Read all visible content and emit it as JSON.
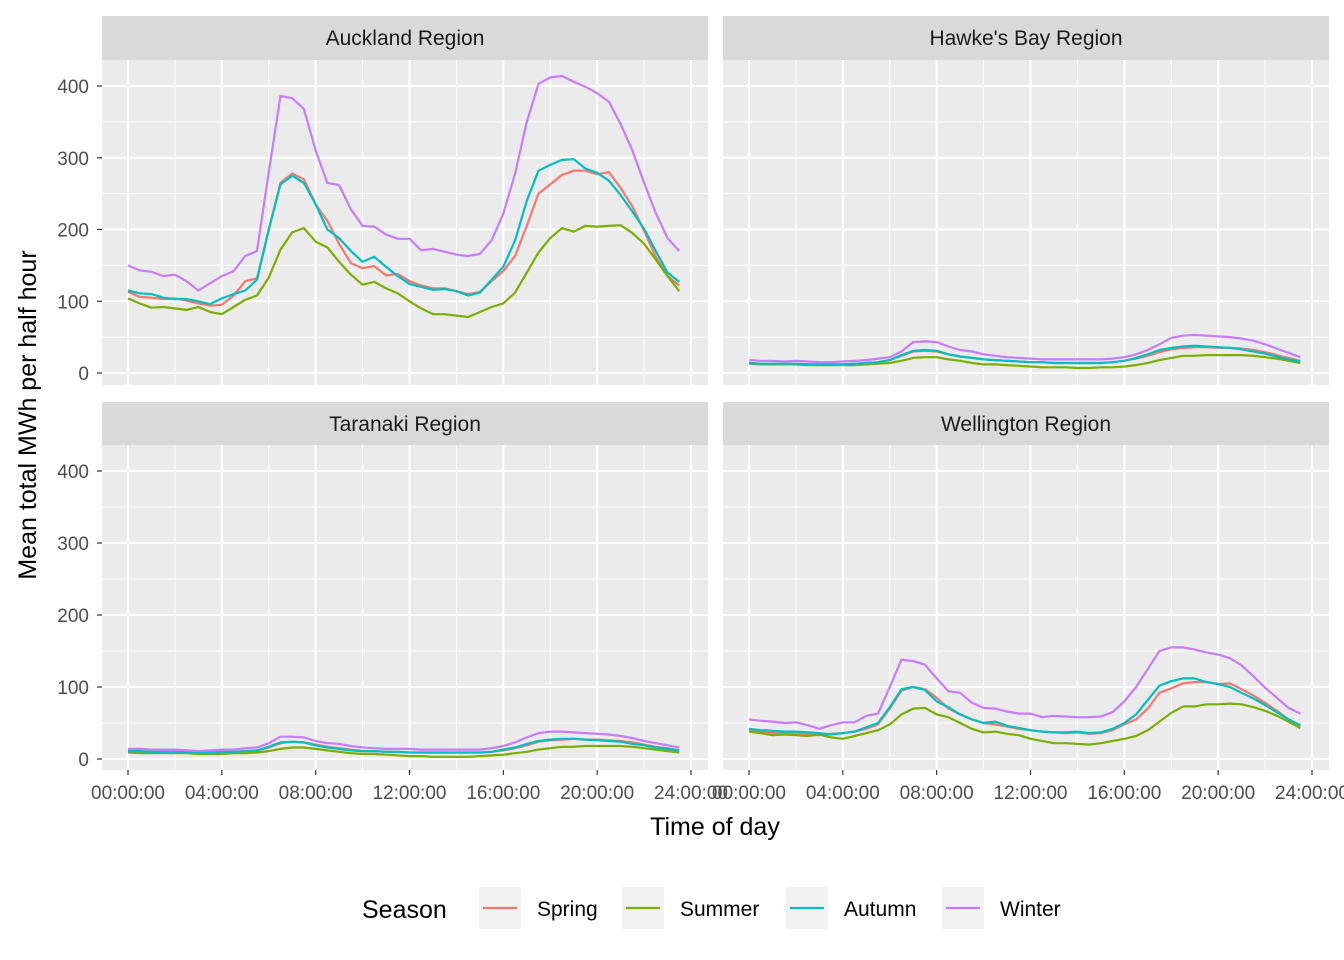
{
  "chart_data": {
    "type": "line",
    "xlabel": "Time of day",
    "ylabel": "Mean total MWh per half hour",
    "x_unit": "hours",
    "x_step_hours": 0.5,
    "x_ticks": [
      "00:00:00",
      "04:00:00",
      "08:00:00",
      "12:00:00",
      "16:00:00",
      "20:00:00",
      "24:00:00"
    ],
    "y_ticks": [
      "0",
      "100",
      "200",
      "300",
      "400"
    ],
    "ylim": [
      0,
      420
    ],
    "xlim": [
      0,
      24
    ],
    "grid": true,
    "legend": {
      "title": "Season",
      "placement": "bottom"
    },
    "series_meta": [
      {
        "name": "Spring",
        "color": "#F8766D"
      },
      {
        "name": "Summer",
        "color": "#7CAE00"
      },
      {
        "name": "Autumn",
        "color": "#00BFC4"
      },
      {
        "name": "Winter",
        "color": "#C77CFF"
      }
    ],
    "facets": [
      {
        "title": "Auckland Region",
        "series": [
          {
            "name": "Spring",
            "values": [
              113,
              106,
              105,
              103,
              104,
              101,
              97,
              94,
              95,
              108,
              128,
              132,
              200,
              265,
              278,
              270,
              235,
              212,
              180,
              153,
              146,
              149,
              136,
              138,
              128,
              122,
              118,
              118,
              114,
              110,
              113,
              128,
              142,
              163,
              205,
              250,
              263,
              276,
              282,
              282,
              277,
              280,
              258,
              232,
              198,
              162,
              135,
              122
            ]
          },
          {
            "name": "Summer",
            "values": [
              104,
              97,
              91,
              92,
              90,
              88,
              92,
              85,
              82,
              92,
              102,
              108,
              133,
              172,
              196,
              202,
              183,
              175,
              155,
              137,
              123,
              127,
              118,
              111,
              100,
              90,
              82,
              82,
              80,
              78,
              85,
              92,
              97,
              112,
              140,
              168,
              188,
              202,
              197,
              205,
              204,
              205,
              206,
              195,
              180,
              158,
              135,
              114
            ]
          },
          {
            "name": "Autumn",
            "values": [
              115,
              111,
              110,
              105,
              103,
              103,
              100,
              96,
              104,
              110,
              115,
              130,
              200,
              263,
              275,
              265,
              235,
              200,
              188,
              170,
              155,
              162,
              148,
              135,
              124,
              120,
              116,
              117,
              114,
              108,
              112,
              130,
              148,
              185,
              240,
              282,
              290,
              297,
              298,
              285,
              279,
              268,
              248,
              225,
              201,
              170,
              140,
              127
            ]
          },
          {
            "name": "Winter",
            "values": [
              150,
              143,
              141,
              135,
              137,
              128,
              115,
              125,
              135,
              142,
              163,
              170,
              280,
              386,
              383,
              368,
              310,
              265,
              262,
              228,
              205,
              204,
              193,
              187,
              187,
              171,
              173,
              169,
              165,
              163,
              166,
              185,
              222,
              278,
              350,
              403,
              412,
              414,
              406,
              399,
              390,
              378,
              347,
              310,
              265,
              223,
              188,
              170
            ]
          }
        ]
      },
      {
        "title": "Hawke's Bay Region",
        "series": [
          {
            "name": "Spring",
            "values": [
              14,
              13,
              13,
              13,
              13,
              12,
              12,
              12,
              12,
              13,
              14,
              15,
              18,
              24,
              30,
              31,
              30,
              26,
              23,
              21,
              19,
              18,
              17,
              16,
              15,
              15,
              14,
              14,
              14,
              14,
              14,
              15,
              17,
              20,
              24,
              29,
              33,
              35,
              36,
              36,
              35,
              35,
              34,
              32,
              29,
              25,
              21,
              17
            ]
          },
          {
            "name": "Summer",
            "values": [
              13,
              12,
              12,
              12,
              12,
              11,
              11,
              11,
              11,
              11,
              12,
              13,
              14,
              17,
              21,
              22,
              22,
              19,
              17,
              14,
              12,
              12,
              11,
              10,
              9,
              8,
              8,
              8,
              7,
              7,
              8,
              8,
              9,
              11,
              14,
              18,
              21,
              24,
              24,
              25,
              25,
              25,
              25,
              24,
              22,
              20,
              17,
              14
            ]
          },
          {
            "name": "Autumn",
            "values": [
              14,
              13,
              13,
              13,
              13,
              12,
              12,
              12,
              12,
              13,
              14,
              15,
              18,
              25,
              31,
              32,
              31,
              26,
              23,
              21,
              19,
              18,
              17,
              16,
              15,
              15,
              14,
              14,
              14,
              14,
              14,
              15,
              17,
              21,
              26,
              32,
              35,
              37,
              38,
              37,
              36,
              35,
              33,
              30,
              27,
              23,
              19,
              16
            ]
          },
          {
            "name": "Winter",
            "values": [
              18,
              17,
              17,
              16,
              17,
              16,
              15,
              15,
              16,
              17,
              18,
              20,
              22,
              30,
              43,
              44,
              43,
              37,
              32,
              30,
              26,
              24,
              22,
              21,
              20,
              19,
              19,
              19,
              19,
              19,
              19,
              20,
              22,
              26,
              32,
              40,
              49,
              52,
              53,
              52,
              51,
              50,
              48,
              45,
              40,
              34,
              28,
              22
            ]
          }
        ]
      },
      {
        "title": "Taranaki Region",
        "series": [
          {
            "name": "Spring",
            "values": [
              11,
              11,
              10,
              10,
              10,
              10,
              9,
              9,
              10,
              10,
              11,
              12,
              16,
              22,
              24,
              23,
              20,
              17,
              15,
              13,
              11,
              11,
              10,
              10,
              9,
              9,
              9,
              9,
              9,
              9,
              9,
              10,
              12,
              15,
              19,
              24,
              26,
              27,
              28,
              27,
              27,
              26,
              25,
              23,
              20,
              17,
              15,
              12
            ]
          },
          {
            "name": "Summer",
            "values": [
              9,
              8,
              8,
              8,
              8,
              8,
              7,
              7,
              7,
              8,
              8,
              9,
              11,
              14,
              16,
              16,
              14,
              12,
              10,
              8,
              7,
              7,
              6,
              5,
              4,
              4,
              3,
              3,
              3,
              3,
              4,
              5,
              6,
              8,
              10,
              13,
              15,
              17,
              17,
              18,
              18,
              18,
              18,
              17,
              15,
              13,
              11,
              9
            ]
          },
          {
            "name": "Autumn",
            "values": [
              11,
              11,
              10,
              10,
              10,
              10,
              9,
              9,
              10,
              10,
              11,
              12,
              17,
              23,
              24,
              23,
              19,
              16,
              14,
              12,
              11,
              11,
              10,
              10,
              9,
              9,
              9,
              9,
              9,
              9,
              9,
              10,
              13,
              16,
              21,
              25,
              27,
              28,
              28,
              27,
              26,
              25,
              24,
              21,
              19,
              16,
              14,
              12
            ]
          },
          {
            "name": "Winter",
            "values": [
              14,
              14,
              13,
              13,
              13,
              12,
              11,
              12,
              13,
              13,
              15,
              16,
              22,
              31,
              31,
              30,
              25,
              22,
              21,
              18,
              16,
              15,
              14,
              14,
              14,
              13,
              13,
              13,
              13,
              13,
              13,
              15,
              18,
              23,
              30,
              36,
              38,
              38,
              37,
              36,
              35,
              34,
              32,
              29,
              25,
              22,
              19,
              16
            ]
          }
        ]
      },
      {
        "title": "Wellington Region",
        "series": [
          {
            "name": "Spring",
            "values": [
              40,
              38,
              36,
              36,
              35,
              34,
              33,
              35,
              36,
              38,
              42,
              48,
              70,
              95,
              100,
              97,
              85,
              70,
              62,
              55,
              50,
              48,
              45,
              42,
              40,
              38,
              37,
              36,
              37,
              35,
              36,
              40,
              48,
              55,
              70,
              92,
              98,
              105,
              107,
              107,
              104,
              105,
              97,
              88,
              78,
              67,
              55,
              46
            ]
          },
          {
            "name": "Summer",
            "values": [
              38,
              36,
              33,
              34,
              33,
              32,
              34,
              30,
              28,
              32,
              36,
              40,
              48,
              62,
              70,
              71,
              62,
              58,
              50,
              42,
              37,
              38,
              35,
              33,
              28,
              25,
              22,
              22,
              21,
              20,
              22,
              25,
              28,
              32,
              40,
              52,
              64,
              73,
              73,
              76,
              76,
              77,
              76,
              72,
              67,
              60,
              52,
              43
            ]
          },
          {
            "name": "Autumn",
            "values": [
              42,
              40,
              39,
              38,
              38,
              37,
              36,
              34,
              36,
              38,
              44,
              50,
              72,
              97,
              100,
              96,
              80,
              72,
              62,
              55,
              50,
              52,
              46,
              43,
              40,
              38,
              37,
              37,
              38,
              36,
              37,
              42,
              50,
              62,
              82,
              102,
              108,
              112,
              112,
              107,
              104,
              100,
              92,
              84,
              75,
              65,
              55,
              47
            ]
          },
          {
            "name": "Winter",
            "values": [
              55,
              53,
              52,
              50,
              51,
              47,
              42,
              47,
              51,
              51,
              60,
              63,
              100,
              138,
              136,
              131,
              112,
              94,
              92,
              78,
              71,
              70,
              66,
              63,
              63,
              58,
              60,
              59,
              58,
              58,
              59,
              65,
              80,
              100,
              125,
              150,
              155,
              155,
              152,
              148,
              145,
              140,
              130,
              115,
              99,
              85,
              71,
              63
            ]
          }
        ]
      }
    ]
  }
}
